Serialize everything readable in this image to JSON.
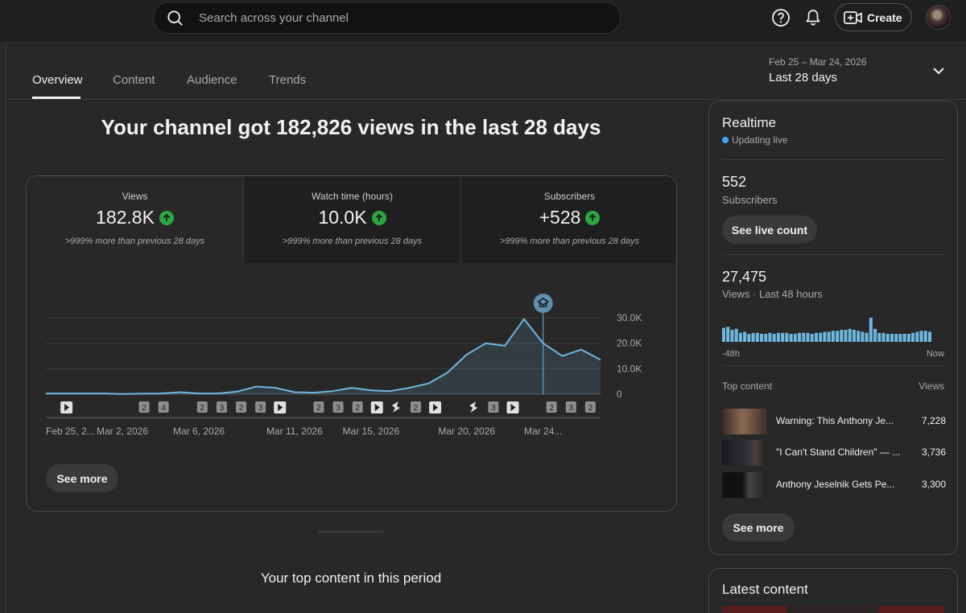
{
  "search": {
    "placeholder": "Search across your channel"
  },
  "header": {
    "create_label": "Create"
  },
  "tabs": [
    {
      "label": "Overview",
      "active": true
    },
    {
      "label": "Content"
    },
    {
      "label": "Audience"
    },
    {
      "label": "Trends"
    }
  ],
  "period": {
    "range": "Feb 25 – Mar 24, 2026",
    "label": "Last 28 days"
  },
  "headline": "Your channel got 182,826 views in the last 28 days",
  "metrics": [
    {
      "label": "Views",
      "value": "182.8K",
      "change": ">999% more than previous 28 days"
    },
    {
      "label": "Watch time (hours)",
      "value": "10.0K",
      "change": ">999% more than previous 28 days"
    },
    {
      "label": "Subscribers",
      "value": "+528",
      "change": ">999% more than previous 28 days"
    }
  ],
  "chart_data": {
    "type": "area",
    "series": [
      {
        "values": [
          300,
          300,
          300,
          300,
          100,
          200,
          300,
          800,
          300,
          300,
          1000,
          3000,
          2500,
          800,
          600,
          1200,
          2500,
          1500,
          1200,
          2500,
          4200,
          8500,
          15500,
          20000,
          19000,
          29500,
          20000,
          15000,
          17500,
          13500
        ]
      }
    ],
    "x_tick_labels": [
      "Feb 25, 2...",
      "Mar 2, 2026",
      "Mar 6, 2026",
      "Mar 11, 2026",
      "Mar 15, 2026",
      "Mar 20, 2026",
      "Mar 24..."
    ],
    "x_tick_index": [
      0,
      4,
      8,
      13,
      17,
      22,
      26
    ],
    "y_tick_labels": [
      "30.0K",
      "20.0K",
      "10.0K",
      "0"
    ],
    "y_tick_values": [
      30000,
      20000,
      10000,
      0
    ],
    "ylim": [
      0,
      30000
    ],
    "cursor_index": 26,
    "markers": [
      {
        "index": 1,
        "kind": "play"
      },
      {
        "index": 5,
        "kind": "num",
        "label": "2"
      },
      {
        "index": 6,
        "kind": "num",
        "label": "4"
      },
      {
        "index": 8,
        "kind": "num",
        "label": "2"
      },
      {
        "index": 9,
        "kind": "num",
        "label": "3"
      },
      {
        "index": 10,
        "kind": "num",
        "label": "2"
      },
      {
        "index": 11,
        "kind": "num",
        "label": "3"
      },
      {
        "index": 12,
        "kind": "play"
      },
      {
        "index": 14,
        "kind": "num",
        "label": "2"
      },
      {
        "index": 15,
        "kind": "num",
        "label": "3"
      },
      {
        "index": 16,
        "kind": "num",
        "label": "2"
      },
      {
        "index": 17,
        "kind": "play"
      },
      {
        "index": 18,
        "kind": "shorts"
      },
      {
        "index": 19,
        "kind": "num",
        "label": "2"
      },
      {
        "index": 20,
        "kind": "play"
      },
      {
        "index": 22,
        "kind": "shorts"
      },
      {
        "index": 23,
        "kind": "num",
        "label": "3"
      },
      {
        "index": 24,
        "kind": "play"
      },
      {
        "index": 26,
        "kind": "num",
        "label": "2"
      },
      {
        "index": 27,
        "kind": "num",
        "label": "3"
      },
      {
        "index": 28,
        "kind": "num",
        "label": "2"
      }
    ],
    "grid": true
  },
  "card": {
    "see_more_label": "See more"
  },
  "top_content_heading": "Your top content in this period",
  "realtime": {
    "title": "Realtime",
    "status": "Updating live",
    "subscribers_value": "552",
    "subscribers_label": "Subscribers",
    "live_count_label": "See live count",
    "views_value": "27,475",
    "views_label": "Views · Last 48 hours",
    "bars": [
      14,
      15,
      12,
      13,
      9,
      10,
      8,
      9,
      9,
      8,
      8,
      9,
      8,
      9,
      9,
      9,
      8,
      8,
      9,
      9,
      9,
      8,
      9,
      9,
      10,
      10,
      11,
      11,
      12,
      12,
      13,
      12,
      11,
      10,
      9,
      24,
      13,
      9,
      9,
      8,
      8,
      8,
      8,
      8,
      8,
      9,
      10,
      11,
      11,
      10
    ],
    "axis_start": "-48h",
    "axis_end": "Now",
    "top_content_label": "Top content",
    "views_col_label": "Views",
    "top_items": [
      {
        "title": "Warning: This Anthony Je...",
        "views": "7,228"
      },
      {
        "title": "\"I Can't Stand Children\" — ...",
        "views": "3,736"
      },
      {
        "title": "Anthony Jeselnik Gets Pe...",
        "views": "3,300"
      }
    ],
    "see_more_label": "See more"
  },
  "latest": {
    "title": "Latest content"
  },
  "colors": {
    "accent": "#3ea6ff",
    "line": "#6fb7e0",
    "positive": "#2ba640"
  }
}
